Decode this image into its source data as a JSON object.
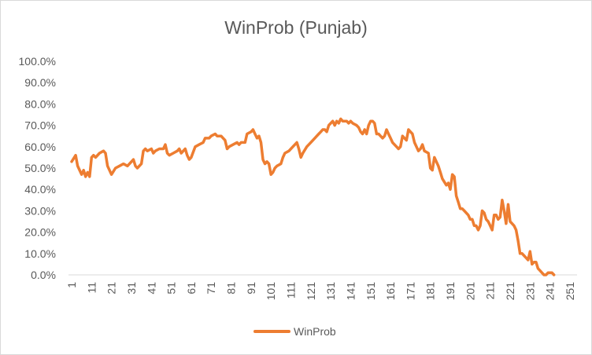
{
  "chart_data": {
    "type": "line",
    "title": "WinProb (Punjab)",
    "xlabel": "",
    "ylabel": "",
    "ylim": [
      0,
      100
    ],
    "y_tick_labels": [
      "0.0%",
      "10.0%",
      "20.0%",
      "30.0%",
      "40.0%",
      "50.0%",
      "60.0%",
      "70.0%",
      "80.0%",
      "90.0%",
      "100.0%"
    ],
    "y_tick_values": [
      0,
      10,
      20,
      30,
      40,
      50,
      60,
      70,
      80,
      90,
      100
    ],
    "x_range": [
      1,
      253
    ],
    "x_tick_labels": [
      "1",
      "11",
      "21",
      "31",
      "41",
      "51",
      "61",
      "71",
      "81",
      "91",
      "101",
      "111",
      "121",
      "131",
      "141",
      "151",
      "161",
      "171",
      "181",
      "191",
      "201",
      "211",
      "221",
      "231",
      "241",
      "251"
    ],
    "x_tick_values": [
      1,
      11,
      21,
      31,
      41,
      51,
      61,
      71,
      81,
      91,
      101,
      111,
      121,
      131,
      141,
      151,
      161,
      171,
      181,
      191,
      201,
      211,
      221,
      231,
      241,
      251
    ],
    "grid": false,
    "legend_position": "bottom",
    "series": [
      {
        "name": "WinProb",
        "color": "#ed7d31",
        "points": [
          [
            1,
            53
          ],
          [
            3,
            56
          ],
          [
            4,
            51
          ],
          [
            6,
            47
          ],
          [
            7,
            49
          ],
          [
            8,
            46
          ],
          [
            9,
            48
          ],
          [
            10,
            46
          ],
          [
            11,
            55
          ],
          [
            12,
            56
          ],
          [
            13,
            55
          ],
          [
            15,
            57
          ],
          [
            17,
            58
          ],
          [
            18,
            57
          ],
          [
            19,
            51
          ],
          [
            21,
            47
          ],
          [
            23,
            50
          ],
          [
            25,
            51
          ],
          [
            27,
            52
          ],
          [
            29,
            51
          ],
          [
            31,
            53
          ],
          [
            32,
            54
          ],
          [
            33,
            51
          ],
          [
            34,
            50
          ],
          [
            36,
            52
          ],
          [
            37,
            58
          ],
          [
            38,
            59
          ],
          [
            39,
            58
          ],
          [
            41,
            59
          ],
          [
            42,
            57
          ],
          [
            43,
            58
          ],
          [
            45,
            59
          ],
          [
            47,
            59
          ],
          [
            48,
            61
          ],
          [
            49,
            57
          ],
          [
            50,
            56
          ],
          [
            52,
            57
          ],
          [
            54,
            58
          ],
          [
            55,
            59
          ],
          [
            56,
            57
          ],
          [
            57,
            58
          ],
          [
            58,
            59
          ],
          [
            59,
            56
          ],
          [
            60,
            54
          ],
          [
            61,
            55
          ],
          [
            63,
            60
          ],
          [
            65,
            61
          ],
          [
            67,
            62
          ],
          [
            68,
            64
          ],
          [
            70,
            64
          ],
          [
            71,
            65
          ],
          [
            73,
            66
          ],
          [
            74,
            65
          ],
          [
            76,
            65
          ],
          [
            77,
            64
          ],
          [
            78,
            63
          ],
          [
            79,
            59
          ],
          [
            80,
            60
          ],
          [
            82,
            61
          ],
          [
            84,
            62
          ],
          [
            85,
            61
          ],
          [
            86,
            62
          ],
          [
            88,
            62
          ],
          [
            89,
            66
          ],
          [
            91,
            67
          ],
          [
            92,
            68
          ],
          [
            93,
            66
          ],
          [
            94,
            64
          ],
          [
            95,
            65
          ],
          [
            96,
            62
          ],
          [
            97,
            54
          ],
          [
            98,
            52
          ],
          [
            99,
            53
          ],
          [
            100,
            52
          ],
          [
            101,
            47
          ],
          [
            102,
            48
          ],
          [
            103,
            50
          ],
          [
            104,
            51
          ],
          [
            106,
            52
          ],
          [
            107,
            55
          ],
          [
            108,
            57
          ],
          [
            110,
            58
          ],
          [
            112,
            60
          ],
          [
            114,
            62
          ],
          [
            115,
            59
          ],
          [
            116,
            55
          ],
          [
            117,
            57
          ],
          [
            119,
            60
          ],
          [
            121,
            62
          ],
          [
            123,
            64
          ],
          [
            124,
            65
          ],
          [
            125,
            66
          ],
          [
            126,
            67
          ],
          [
            127,
            68
          ],
          [
            128,
            68
          ],
          [
            129,
            67
          ],
          [
            130,
            70
          ],
          [
            131,
            71
          ],
          [
            132,
            72
          ],
          [
            133,
            70
          ],
          [
            134,
            72
          ],
          [
            135,
            71
          ],
          [
            136,
            73
          ],
          [
            137,
            72
          ],
          [
            139,
            72
          ],
          [
            140,
            71
          ],
          [
            141,
            72
          ],
          [
            142,
            71
          ],
          [
            144,
            70
          ],
          [
            145,
            69
          ],
          [
            146,
            67
          ],
          [
            147,
            66
          ],
          [
            148,
            68
          ],
          [
            149,
            66
          ],
          [
            150,
            70
          ],
          [
            151,
            72
          ],
          [
            152,
            72
          ],
          [
            153,
            71
          ],
          [
            154,
            66
          ],
          [
            155,
            66
          ],
          [
            156,
            65
          ],
          [
            157,
            64
          ],
          [
            158,
            65
          ],
          [
            159,
            68
          ],
          [
            160,
            66
          ],
          [
            161,
            64
          ],
          [
            162,
            62
          ],
          [
            164,
            60
          ],
          [
            165,
            59
          ],
          [
            166,
            60
          ],
          [
            167,
            65
          ],
          [
            168,
            64
          ],
          [
            169,
            63
          ],
          [
            170,
            68
          ],
          [
            171,
            67
          ],
          [
            172,
            66
          ],
          [
            173,
            62
          ],
          [
            175,
            58
          ],
          [
            176,
            59
          ],
          [
            177,
            61
          ],
          [
            178,
            58
          ],
          [
            180,
            57
          ],
          [
            181,
            50
          ],
          [
            182,
            49
          ],
          [
            183,
            55
          ],
          [
            184,
            53
          ],
          [
            185,
            51
          ],
          [
            186,
            48
          ],
          [
            187,
            45
          ],
          [
            189,
            42
          ],
          [
            190,
            43
          ],
          [
            191,
            40
          ],
          [
            192,
            47
          ],
          [
            193,
            46
          ],
          [
            194,
            37
          ],
          [
            195,
            34
          ],
          [
            196,
            31
          ],
          [
            197,
            31
          ],
          [
            198,
            30
          ],
          [
            200,
            28
          ],
          [
            201,
            26
          ],
          [
            202,
            26
          ],
          [
            203,
            23
          ],
          [
            204,
            23
          ],
          [
            205,
            21
          ],
          [
            206,
            23
          ],
          [
            207,
            30
          ],
          [
            208,
            29
          ],
          [
            209,
            26
          ],
          [
            210,
            25
          ],
          [
            211,
            23
          ],
          [
            212,
            21
          ],
          [
            213,
            28
          ],
          [
            214,
            28
          ],
          [
            215,
            26
          ],
          [
            216,
            27
          ],
          [
            217,
            35
          ],
          [
            218,
            30
          ],
          [
            219,
            24
          ],
          [
            220,
            33
          ],
          [
            221,
            25
          ],
          [
            223,
            23
          ],
          [
            224,
            21
          ],
          [
            225,
            16
          ],
          [
            226,
            10
          ],
          [
            227,
            10
          ],
          [
            228,
            9
          ],
          [
            229,
            8
          ],
          [
            230,
            7
          ],
          [
            231,
            11
          ],
          [
            232,
            5
          ],
          [
            233,
            6
          ],
          [
            234,
            6
          ],
          [
            235,
            3
          ],
          [
            236,
            2
          ],
          [
            237,
            1
          ],
          [
            238,
            0
          ],
          [
            239,
            0
          ],
          [
            240,
            1
          ],
          [
            241,
            1
          ],
          [
            242,
            1
          ],
          [
            243,
            0
          ]
        ]
      }
    ]
  }
}
